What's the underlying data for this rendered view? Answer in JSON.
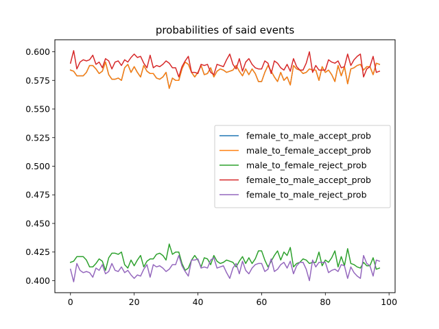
{
  "chart_data": {
    "type": "line",
    "title": "probabilities of said events",
    "xlabel": "",
    "ylabel": "",
    "xlim": [
      -4.9,
      101.9
    ],
    "ylim": [
      0.3895,
      0.6105
    ],
    "xticks": [
      0,
      20,
      40,
      60,
      80,
      100
    ],
    "yticks": [
      0.4,
      0.425,
      0.45,
      0.475,
      0.5,
      0.525,
      0.55,
      0.575,
      0.6
    ],
    "ytick_labels": [
      "0.400",
      "0.425",
      "0.450",
      "0.475",
      "0.500",
      "0.525",
      "0.550",
      "0.575",
      "0.600"
    ],
    "legend_position": "center-right",
    "x": [
      0,
      1,
      2,
      3,
      4,
      5,
      6,
      7,
      8,
      9,
      10,
      11,
      12,
      13,
      14,
      15,
      16,
      17,
      18,
      19,
      20,
      21,
      22,
      23,
      24,
      25,
      26,
      27,
      28,
      29,
      30,
      31,
      32,
      33,
      34,
      35,
      36,
      37,
      38,
      39,
      40,
      41,
      42,
      43,
      44,
      45,
      46,
      47,
      48,
      49,
      50,
      51,
      52,
      53,
      54,
      55,
      56,
      57,
      58,
      59,
      60,
      61,
      62,
      63,
      64,
      65,
      66,
      67,
      68,
      69,
      70,
      71,
      72,
      73,
      74,
      75,
      76,
      77,
      78,
      79,
      80,
      81,
      82,
      83,
      84,
      85,
      86,
      87,
      88,
      89,
      90,
      91,
      92,
      93,
      94,
      95,
      96,
      97
    ],
    "series": [
      {
        "name": "female_to_male_accept_prob",
        "color": "#1f77b4",
        "values": [
          0.584,
          0.583,
          0.579,
          0.579,
          0.579,
          0.582,
          0.588,
          0.588,
          0.585,
          0.581,
          0.583,
          0.591,
          0.58,
          0.576,
          0.576,
          0.577,
          0.575,
          0.586,
          0.589,
          0.582,
          0.587,
          0.582,
          0.578,
          0.588,
          0.583,
          0.581,
          0.581,
          0.577,
          0.576,
          0.578,
          0.582,
          0.568,
          0.577,
          0.575,
          0.575,
          0.585,
          0.591,
          0.589,
          0.582,
          0.578,
          0.582,
          0.588,
          0.58,
          0.581,
          0.586,
          0.578,
          0.583,
          0.585,
          0.584,
          0.582,
          0.583,
          0.584,
          0.588,
          0.583,
          0.579,
          0.585,
          0.58,
          0.585,
          0.581,
          0.574,
          0.574,
          0.582,
          0.588,
          0.583,
          0.578,
          0.574,
          0.582,
          0.575,
          0.578,
          0.571,
          0.588,
          0.585,
          0.584,
          0.581,
          0.582,
          0.585,
          0.584,
          0.584,
          0.575,
          0.587,
          0.582,
          0.584,
          0.58,
          0.574,
          0.588,
          0.579,
          0.587,
          0.572,
          0.585,
          0.586,
          0.588,
          0.589,
          0.584,
          0.587,
          0.587,
          0.58,
          0.59,
          0.589
        ]
      },
      {
        "name": "male_to_female_accept_prob",
        "color": "#ff7f0e",
        "values": [
          0.584,
          0.583,
          0.579,
          0.579,
          0.579,
          0.582,
          0.588,
          0.588,
          0.585,
          0.581,
          0.583,
          0.591,
          0.58,
          0.576,
          0.576,
          0.577,
          0.575,
          0.586,
          0.589,
          0.582,
          0.587,
          0.582,
          0.578,
          0.588,
          0.583,
          0.581,
          0.581,
          0.577,
          0.576,
          0.578,
          0.582,
          0.568,
          0.577,
          0.575,
          0.575,
          0.585,
          0.591,
          0.589,
          0.582,
          0.578,
          0.582,
          0.588,
          0.58,
          0.581,
          0.586,
          0.578,
          0.583,
          0.585,
          0.584,
          0.582,
          0.583,
          0.584,
          0.588,
          0.583,
          0.579,
          0.585,
          0.58,
          0.585,
          0.581,
          0.574,
          0.574,
          0.582,
          0.588,
          0.583,
          0.578,
          0.574,
          0.582,
          0.575,
          0.578,
          0.571,
          0.588,
          0.585,
          0.584,
          0.581,
          0.582,
          0.585,
          0.584,
          0.584,
          0.575,
          0.587,
          0.582,
          0.584,
          0.58,
          0.574,
          0.588,
          0.579,
          0.587,
          0.572,
          0.585,
          0.586,
          0.588,
          0.589,
          0.584,
          0.587,
          0.587,
          0.58,
          0.59,
          0.589
        ]
      },
      {
        "name": "male_to_female_reject_prob",
        "color": "#2ca02c",
        "values": [
          0.416,
          0.417,
          0.421,
          0.421,
          0.421,
          0.418,
          0.412,
          0.412,
          0.415,
          0.419,
          0.417,
          0.409,
          0.42,
          0.424,
          0.424,
          0.423,
          0.425,
          0.414,
          0.411,
          0.418,
          0.413,
          0.418,
          0.422,
          0.412,
          0.417,
          0.419,
          0.419,
          0.423,
          0.424,
          0.422,
          0.418,
          0.432,
          0.423,
          0.425,
          0.425,
          0.415,
          0.409,
          0.411,
          0.418,
          0.422,
          0.418,
          0.412,
          0.42,
          0.419,
          0.414,
          0.422,
          0.417,
          0.415,
          0.416,
          0.418,
          0.417,
          0.416,
          0.412,
          0.417,
          0.421,
          0.415,
          0.42,
          0.415,
          0.419,
          0.426,
          0.426,
          0.418,
          0.412,
          0.417,
          0.422,
          0.426,
          0.418,
          0.425,
          0.422,
          0.429,
          0.412,
          0.415,
          0.416,
          0.419,
          0.418,
          0.415,
          0.416,
          0.416,
          0.425,
          0.413,
          0.418,
          0.416,
          0.42,
          0.426,
          0.412,
          0.421,
          0.413,
          0.428,
          0.415,
          0.414,
          0.412,
          0.411,
          0.416,
          0.413,
          0.413,
          0.42,
          0.41,
          0.411
        ]
      },
      {
        "name": "female_to_male_accept_prob",
        "color": "#d62728",
        "values": [
          0.59,
          0.601,
          0.585,
          0.591,
          0.593,
          0.592,
          0.593,
          0.597,
          0.589,
          0.591,
          0.586,
          0.594,
          0.592,
          0.585,
          0.591,
          0.592,
          0.588,
          0.593,
          0.591,
          0.595,
          0.598,
          0.595,
          0.596,
          0.59,
          0.586,
          0.597,
          0.586,
          0.588,
          0.587,
          0.589,
          0.592,
          0.59,
          0.586,
          0.586,
          0.578,
          0.587,
          0.592,
          0.596,
          0.582,
          0.582,
          0.581,
          0.589,
          0.588,
          0.589,
          0.582,
          0.58,
          0.589,
          0.588,
          0.587,
          0.593,
          0.598,
          0.589,
          0.585,
          0.594,
          0.583,
          0.591,
          0.594,
          0.589,
          0.586,
          0.585,
          0.585,
          0.592,
          0.59,
          0.581,
          0.592,
          0.59,
          0.586,
          0.584,
          0.589,
          0.583,
          0.594,
          0.587,
          0.584,
          0.584,
          0.59,
          0.6,
          0.582,
          0.588,
          0.584,
          0.584,
          0.584,
          0.593,
          0.591,
          0.59,
          0.592,
          0.586,
          0.587,
          0.598,
          0.588,
          0.593,
          0.596,
          0.598,
          0.578,
          0.585,
          0.587,
          0.596,
          0.582,
          0.583
        ]
      },
      {
        "name": "female_to_male_reject_prob",
        "color": "#9467bd",
        "values": [
          0.41,
          0.399,
          0.415,
          0.409,
          0.407,
          0.408,
          0.407,
          0.403,
          0.411,
          0.409,
          0.414,
          0.406,
          0.408,
          0.415,
          0.409,
          0.408,
          0.412,
          0.407,
          0.409,
          0.405,
          0.402,
          0.405,
          0.404,
          0.41,
          0.414,
          0.403,
          0.414,
          0.412,
          0.413,
          0.411,
          0.408,
          0.41,
          0.414,
          0.414,
          0.422,
          0.413,
          0.408,
          0.404,
          0.418,
          0.418,
          0.419,
          0.411,
          0.412,
          0.411,
          0.418,
          0.42,
          0.411,
          0.412,
          0.413,
          0.407,
          0.402,
          0.411,
          0.415,
          0.406,
          0.417,
          0.409,
          0.406,
          0.411,
          0.414,
          0.415,
          0.415,
          0.408,
          0.41,
          0.419,
          0.408,
          0.41,
          0.414,
          0.416,
          0.411,
          0.417,
          0.406,
          0.413,
          0.416,
          0.416,
          0.41,
          0.4,
          0.418,
          0.412,
          0.416,
          0.416,
          0.416,
          0.407,
          0.409,
          0.41,
          0.408,
          0.414,
          0.413,
          0.402,
          0.412,
          0.407,
          0.404,
          0.402,
          0.422,
          0.415,
          0.413,
          0.404,
          0.418,
          0.417
        ]
      }
    ]
  }
}
